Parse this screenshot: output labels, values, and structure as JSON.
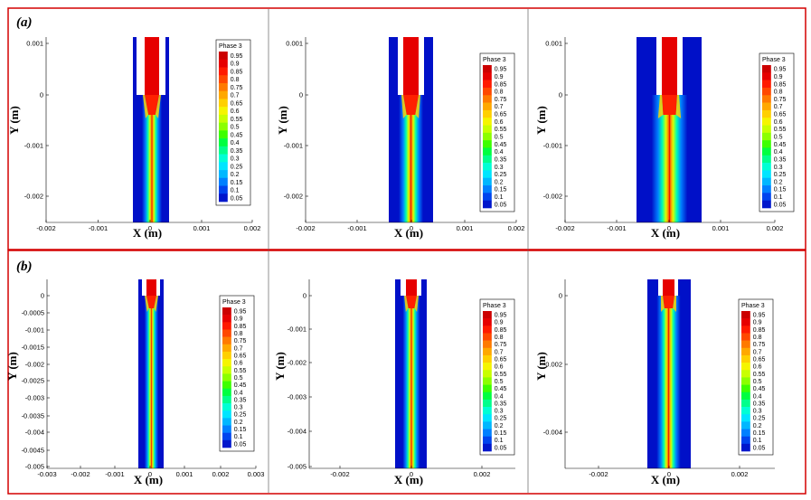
{
  "figure": {
    "row_labels": [
      "(a)",
      "(b)"
    ],
    "colormap": [
      "#0016cc",
      "#0044ee",
      "#0080ff",
      "#00b7ff",
      "#00e5ff",
      "#00ffd5",
      "#00ff8c",
      "#00ff40",
      "#3dff00",
      "#8cff00",
      "#c8ff00",
      "#f5f500",
      "#ffd000",
      "#ffa800",
      "#ff7a00",
      "#ff4800",
      "#ff1a00",
      "#e60000",
      "#cc0000"
    ],
    "wall_color": "#ffffff",
    "outer_fluid_color": "#0010c8"
  },
  "panels": [
    {
      "legend_title": "Phase 3",
      "legend_values": [
        "0.95",
        "0.9",
        "0.85",
        "0.8",
        "0.75",
        "0.7",
        "0.65",
        "0.6",
        "0.55",
        "0.5",
        "0.45",
        "0.4",
        "0.35",
        "0.3",
        "0.25",
        "0.2",
        "0.15",
        "0.1",
        "0.05"
      ],
      "xlabel": "X (m)",
      "ylabel": "Y (m)",
      "xticks": [
        "-0.002",
        "-0.001",
        "0",
        "0.001",
        "0.002"
      ],
      "yticks": [
        "0.001",
        "0",
        "-0.001",
        "-0.002"
      ]
    },
    {
      "legend_title": "Phase 3",
      "legend_values": [
        "0.95",
        "0.9",
        "0.85",
        "0.8",
        "0.75",
        "0.7",
        "0.65",
        "0.6",
        "0.55",
        "0.5",
        "0.45",
        "0.4",
        "0.35",
        "0.3",
        "0.25",
        "0.2",
        "0.15",
        "0.1",
        "0.05"
      ],
      "xlabel": "X (m)",
      "ylabel": "Y (m)",
      "xticks": [
        "-0.002",
        "-0.001",
        "0",
        "0.001",
        "0.002"
      ],
      "yticks": [
        "0.001",
        "0",
        "-0.001",
        "-0.002"
      ]
    },
    {
      "legend_title": "Phase 3",
      "legend_values": [
        "0.95",
        "0.9",
        "0.85",
        "0.8",
        "0.75",
        "0.7",
        "0.65",
        "0.6",
        "0.55",
        "0.5",
        "0.45",
        "0.4",
        "0.35",
        "0.3",
        "0.25",
        "0.2",
        "0.15",
        "0.1",
        "0.05"
      ],
      "xlabel": "X (m)",
      "ylabel": "Y (m)",
      "xticks": [
        "-0.002",
        "-0.001",
        "0",
        "0.001",
        "0.002"
      ],
      "yticks": [
        "0.001",
        "0",
        "-0.001",
        "-0.002"
      ]
    },
    {
      "legend_title": "Phase 3",
      "legend_values": [
        "0.95",
        "0.9",
        "0.85",
        "0.8",
        "0.75",
        "0.7",
        "0.65",
        "0.6",
        "0.55",
        "0.5",
        "0.45",
        "0.4",
        "0.35",
        "0.3",
        "0.25",
        "0.2",
        "0.15",
        "0.1",
        "0.05"
      ],
      "xlabel": "X (m)",
      "ylabel": "Y (m)",
      "xticks": [
        "-0.003",
        "-0.002",
        "-0.001",
        "0",
        "0.001",
        "0.002",
        "0.003"
      ],
      "yticks": [
        "0",
        "-0.0005",
        "-0.001",
        "-0.0015",
        "-0.002",
        "-0.0025",
        "-0.003",
        "-0.0035",
        "-0.004",
        "-0.0045",
        "-0.005"
      ]
    },
    {
      "legend_title": "Phase 3",
      "legend_values": [
        "0.95",
        "0.9",
        "0.85",
        "0.8",
        "0.75",
        "0.7",
        "0.65",
        "0.6",
        "0.55",
        "0.5",
        "0.45",
        "0.4",
        "0.35",
        "0.3",
        "0.25",
        "0.2",
        "0.15",
        "0.1",
        "0.05"
      ],
      "xlabel": "X (m)",
      "ylabel": "Y (m)",
      "xticks": [
        "-0.002",
        "0",
        "0.002"
      ],
      "yticks": [
        "0",
        "-0.001",
        "-0.002",
        "-0.003",
        "-0.004",
        "-0.005"
      ]
    },
    {
      "legend_title": "Phase 3",
      "legend_values": [
        "0.95",
        "0.9",
        "0.85",
        "0.8",
        "0.75",
        "0.7",
        "0.65",
        "0.6",
        "0.55",
        "0.5",
        "0.45",
        "0.4",
        "0.35",
        "0.3",
        "0.25",
        "0.2",
        "0.15",
        "0.1",
        "0.05"
      ],
      "xlabel": "X (m)",
      "ylabel": "Y (m)",
      "xticks": [
        "-0.002",
        "0",
        "0.002"
      ],
      "yticks": [
        "0",
        "-0.002",
        "-0.004"
      ]
    }
  ]
}
